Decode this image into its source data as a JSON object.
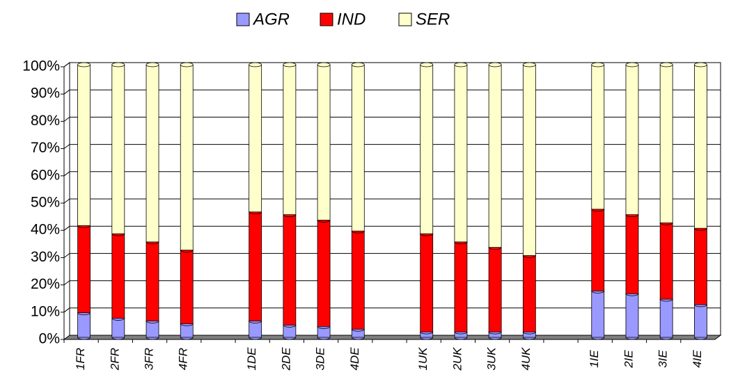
{
  "chart_data": {
    "type": "bar",
    "stacked": true,
    "categories": [
      "1FR",
      "2FR",
      "3FR",
      "4FR",
      null,
      "1DE",
      "2DE",
      "3DE",
      "4DE",
      null,
      "1UK",
      "2UK",
      "3UK",
      "4UK",
      null,
      "1IE",
      "2IE",
      "3IE",
      "4IE"
    ],
    "series": [
      {
        "name": "AGR",
        "color": "#9999ff",
        "values": [
          9,
          7,
          6,
          5,
          null,
          6,
          4.5,
          4,
          3,
          null,
          2,
          2,
          2,
          2,
          null,
          17,
          16,
          14,
          12
        ]
      },
      {
        "name": "IND",
        "color": "#ff0000",
        "values": [
          32,
          31,
          29,
          27,
          null,
          40,
          40.5,
          39,
          36,
          null,
          36,
          33,
          31,
          28,
          null,
          30,
          29,
          28,
          28
        ]
      },
      {
        "name": "SER",
        "color": "#ffffcc",
        "values": [
          59,
          62,
          65,
          68,
          null,
          54,
          55,
          57,
          61,
          null,
          62,
          65,
          67,
          70,
          null,
          53,
          55,
          58,
          60
        ]
      }
    ],
    "ylim": [
      0,
      100
    ],
    "yticks": [
      {
        "value": 0,
        "label": "0%"
      },
      {
        "value": 10,
        "label": "10%"
      },
      {
        "value": 20,
        "label": "20%"
      },
      {
        "value": 30,
        "label": "30%"
      },
      {
        "value": 40,
        "label": "40%"
      },
      {
        "value": 50,
        "label": "50%"
      },
      {
        "value": 60,
        "label": "60%"
      },
      {
        "value": 70,
        "label": "70%"
      },
      {
        "value": 80,
        "label": "80%"
      },
      {
        "value": 90,
        "label": "90%"
      },
      {
        "value": 100,
        "label": "100%"
      }
    ],
    "grid": true,
    "legend": "top"
  }
}
